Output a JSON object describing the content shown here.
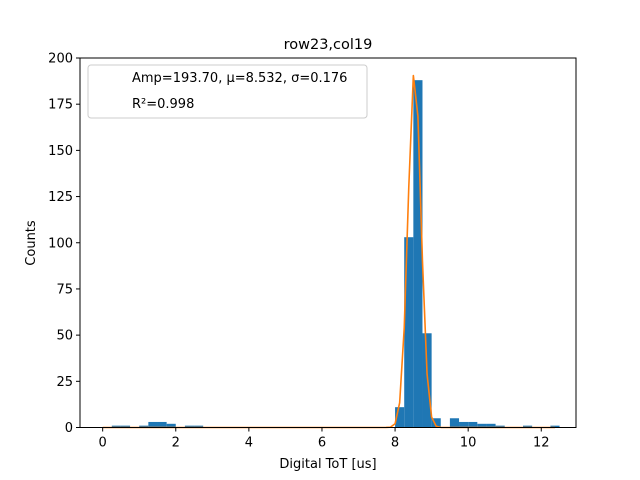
{
  "chart_data": {
    "type": "bar",
    "title": "row23,col19",
    "xlabel": "Digital ToT [us]",
    "ylabel": "Counts",
    "xlim": [
      -0.62,
      12.95
    ],
    "ylim": [
      0,
      200
    ],
    "xticks": [
      0,
      2,
      4,
      6,
      8,
      10,
      12
    ],
    "yticks": [
      0,
      25,
      50,
      75,
      100,
      125,
      150,
      175,
      200
    ],
    "grid": false,
    "legend_position": "top-left",
    "bar_color": "#1f77b4",
    "fit_color": "#ff7f0e",
    "legend_lines": [
      "Amp=193.70, μ=8.532, σ=0.176",
      "R²=0.998"
    ],
    "histogram": {
      "bin_width": 0.25,
      "bins": [
        {
          "x": 0.25,
          "count": 1
        },
        {
          "x": 0.5,
          "count": 1
        },
        {
          "x": 1.0,
          "count": 1
        },
        {
          "x": 1.25,
          "count": 3
        },
        {
          "x": 1.5,
          "count": 3
        },
        {
          "x": 1.75,
          "count": 2
        },
        {
          "x": 2.25,
          "count": 1
        },
        {
          "x": 2.5,
          "count": 1
        },
        {
          "x": 8.0,
          "count": 11
        },
        {
          "x": 8.25,
          "count": 103
        },
        {
          "x": 8.5,
          "count": 188
        },
        {
          "x": 8.75,
          "count": 51
        },
        {
          "x": 9.0,
          "count": 5
        },
        {
          "x": 9.5,
          "count": 5
        },
        {
          "x": 9.75,
          "count": 3
        },
        {
          "x": 10.0,
          "count": 3
        },
        {
          "x": 10.25,
          "count": 2
        },
        {
          "x": 10.5,
          "count": 2
        },
        {
          "x": 10.75,
          "count": 1
        },
        {
          "x": 11.5,
          "count": 1
        },
        {
          "x": 12.25,
          "count": 1
        }
      ]
    },
    "fit": {
      "type": "gaussian",
      "amp": 193.7,
      "mu": 8.532,
      "sigma": 0.176,
      "x_points": [
        0.0,
        0.125,
        0.25,
        0.375,
        0.5,
        0.625,
        0.75,
        0.875,
        1.0,
        1.125,
        1.25,
        1.375,
        1.5,
        1.625,
        1.75,
        1.875,
        2.0,
        2.125,
        2.25,
        2.375,
        2.5,
        2.625,
        2.75,
        2.875,
        3.0,
        3.125,
        3.25,
        3.375,
        3.5,
        3.625,
        3.75,
        3.875,
        4.0,
        4.125,
        4.25,
        4.375,
        4.5,
        4.625,
        4.75,
        4.875,
        5.0,
        5.125,
        5.25,
        5.375,
        5.5,
        5.625,
        5.75,
        5.875,
        6.0,
        6.125,
        6.25,
        6.375,
        6.5,
        6.625,
        6.75,
        6.875,
        7.0,
        7.125,
        7.25,
        7.375,
        7.5,
        7.625,
        7.75,
        7.875,
        8.0,
        8.125,
        8.25,
        8.375,
        8.5,
        8.625,
        8.75,
        8.875,
        9.0,
        9.125,
        9.25,
        9.375,
        9.5,
        9.625,
        9.75,
        9.875,
        10.0,
        10.125,
        10.25,
        10.375,
        10.5,
        10.625,
        10.75,
        10.875,
        11.0,
        11.125,
        11.25,
        11.375,
        11.5,
        11.625,
        11.75,
        11.875,
        12.0,
        12.125,
        12.25,
        12.375
      ]
    }
  }
}
